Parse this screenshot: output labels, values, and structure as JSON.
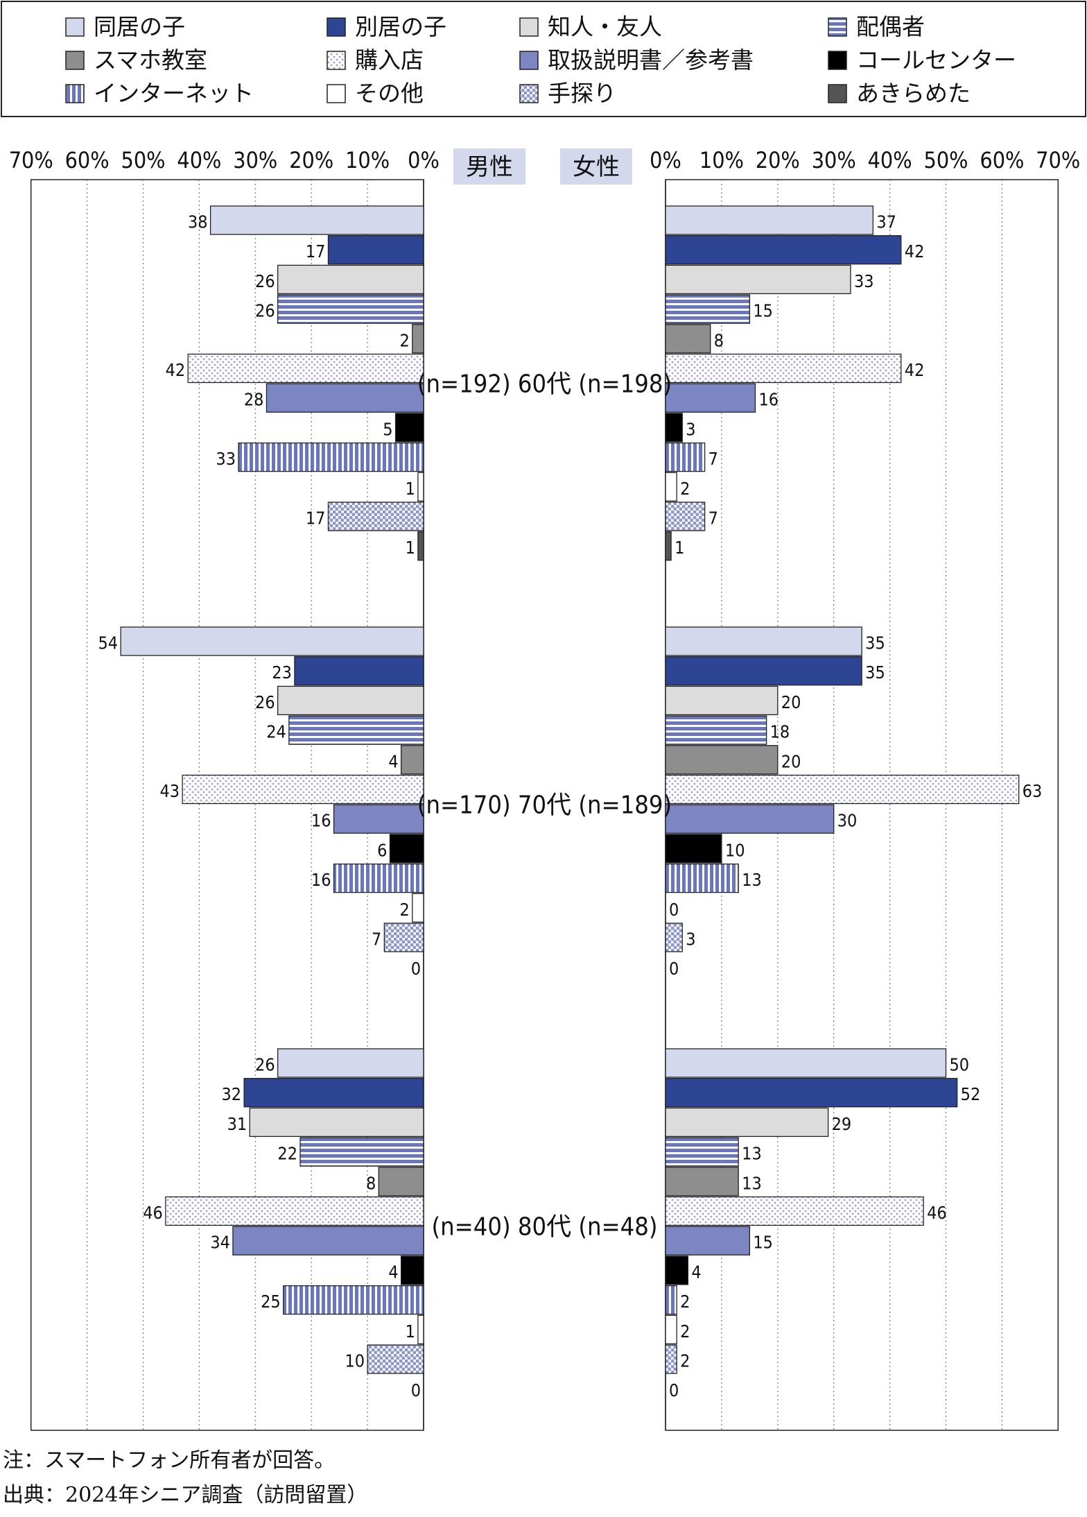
{
  "chart_data": {
    "type": "bar",
    "orientation": "horizontal",
    "layout": "back-to-back",
    "legend": {
      "placement": "top",
      "columns": 4,
      "entries": [
        "同居の子",
        "別居の子",
        "知人・友人",
        "配偶者",
        "スマホ教室",
        "購入店",
        "取扱説明書／参考書",
        "コールセンター",
        "インターネット",
        "その他",
        "手探り",
        "あきらめた"
      ]
    },
    "series_style": [
      {
        "name": "同居の子",
        "fill": "#d4d8ec",
        "pattern": "solid"
      },
      {
        "name": "別居の子",
        "fill": "#2e4593",
        "pattern": "solid"
      },
      {
        "name": "知人・友人",
        "fill": "#dcdcdc",
        "pattern": "solid"
      },
      {
        "name": "配偶者",
        "fill": "#6a78bb",
        "pattern": "h-stripes"
      },
      {
        "name": "スマホ教室",
        "fill": "#8e8e8e",
        "pattern": "solid"
      },
      {
        "name": "購入店",
        "fill": "#a2aad6",
        "pattern": "light-dots"
      },
      {
        "name": "取扱説明書／参考書",
        "fill": "#7b86c2",
        "pattern": "solid"
      },
      {
        "name": "コールセンター",
        "fill": "#000000",
        "pattern": "solid"
      },
      {
        "name": "インターネット",
        "fill": "#6a78bb",
        "pattern": "v-stripes"
      },
      {
        "name": "その他",
        "fill": "#ffffff",
        "pattern": "solid"
      },
      {
        "name": "手探り",
        "fill": "#8d97cc",
        "pattern": "heavy-dots"
      },
      {
        "name": "あきらめた",
        "fill": "#555555",
        "pattern": "solid"
      }
    ],
    "xlim": [
      0,
      70
    ],
    "tick_labels": [
      "0%",
      "10%",
      "20%",
      "30%",
      "40%",
      "50%",
      "60%",
      "70%"
    ],
    "grid": true,
    "panels": [
      {
        "name": "男性",
        "direction": "left"
      },
      {
        "name": "女性",
        "direction": "right"
      }
    ],
    "groups": [
      {
        "label": "(n=192) 60代 (n=198)",
        "男性": [
          38,
          17,
          26,
          26,
          2,
          42,
          28,
          5,
          33,
          1,
          17,
          1
        ],
        "女性": [
          37,
          42,
          33,
          15,
          8,
          42,
          16,
          3,
          7,
          2,
          7,
          1
        ]
      },
      {
        "label": "(n=170) 70代 (n=189)",
        "男性": [
          54,
          23,
          26,
          24,
          4,
          43,
          16,
          6,
          16,
          2,
          7,
          0
        ],
        "女性": [
          35,
          35,
          20,
          18,
          20,
          63,
          30,
          10,
          13,
          0,
          3,
          0
        ]
      },
      {
        "label": "(n=40)  80代  (n=48)",
        "男性": [
          26,
          32,
          31,
          22,
          8,
          46,
          34,
          4,
          25,
          1,
          10,
          0
        ],
        "女性": [
          50,
          52,
          29,
          13,
          13,
          46,
          15,
          4,
          2,
          2,
          2,
          0
        ]
      }
    ]
  },
  "notes": {
    "note": "注：スマートフォン所有者が回答。",
    "source": "出典：2024年シニア調査（訪問留置）"
  }
}
